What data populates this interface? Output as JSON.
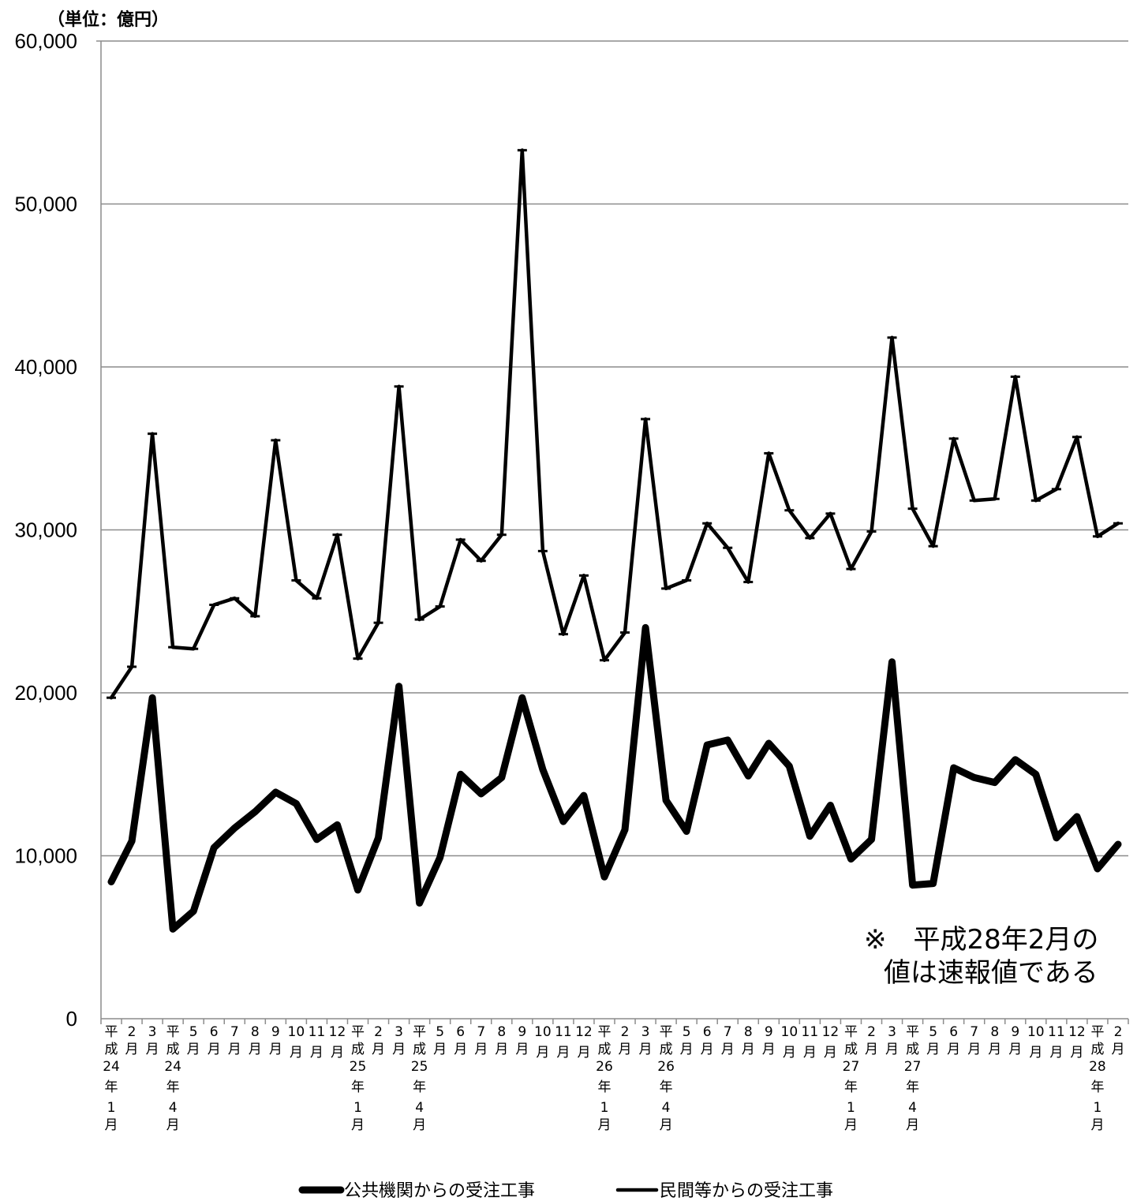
{
  "chart_data": {
    "type": "line",
    "unit_label": "（単位：億円）",
    "ylim": [
      0,
      60000
    ],
    "yticks": [
      0,
      10000,
      20000,
      30000,
      40000,
      50000,
      60000
    ],
    "ytick_labels": [
      "0",
      "10,000",
      "20,000",
      "30,000",
      "40,000",
      "50,000",
      "60,000"
    ],
    "grid": true,
    "categories": [
      "平成24年 1月",
      "2月",
      "3月",
      "平成24年 4月",
      "5月",
      "6月",
      "7月",
      "8月",
      "9月",
      "10月",
      "11月",
      "12月",
      "平成25年 1月",
      "2月",
      "3月",
      "平成25年 4月",
      "5月",
      "6月",
      "7月",
      "8月",
      "9月",
      "10月",
      "11月",
      "12月",
      "平成26年 1月",
      "2月",
      "3月",
      "平成26年 4月",
      "5月",
      "6月",
      "7月",
      "8月",
      "9月",
      "10月",
      "11月",
      "12月",
      "平成27年 1月",
      "2月",
      "3月",
      "平成27年 4月",
      "5月",
      "6月",
      "7月",
      "8月",
      "9月",
      "10月",
      "11月",
      "12月",
      "平成28年 1月",
      "2月"
    ],
    "series": [
      {
        "name": "公共機関からの受注工事",
        "values": [
          8400,
          10900,
          19700,
          5500,
          6600,
          10500,
          11700,
          12700,
          13900,
          13200,
          11000,
          11900,
          7900,
          11100,
          20400,
          7100,
          9900,
          15000,
          13800,
          14800,
          19700,
          15300,
          12100,
          13700,
          8700,
          11600,
          24000,
          13400,
          11500,
          16800,
          17100,
          14900,
          16900,
          15500,
          11200,
          13100,
          9800,
          11000,
          21900,
          8200,
          8300,
          15400,
          14800,
          14500,
          15900,
          15000,
          11100,
          12400,
          9200,
          10700
        ]
      },
      {
        "name": "民間等からの受注工事",
        "values": [
          19700,
          21600,
          35900,
          22800,
          22700,
          25400,
          25800,
          24700,
          35500,
          26900,
          25800,
          29700,
          22100,
          24300,
          38800,
          24500,
          25300,
          29400,
          28100,
          29700,
          53300,
          28700,
          23600,
          27200,
          22000,
          23700,
          36800,
          26400,
          26900,
          30400,
          28900,
          26800,
          34700,
          31200,
          29500,
          31000,
          27600,
          29900,
          41800,
          31300,
          29000,
          35600,
          31800,
          31900,
          39400,
          31800,
          32500,
          35700,
          29600,
          30400
        ]
      }
    ],
    "annotation": [
      "※　平成28年2月の",
      "値は速報値である"
    ],
    "legend_position": "bottom"
  },
  "colors": {
    "line": "#000000",
    "grid": "#8c8c8c",
    "axis": "#8c8c8c"
  }
}
